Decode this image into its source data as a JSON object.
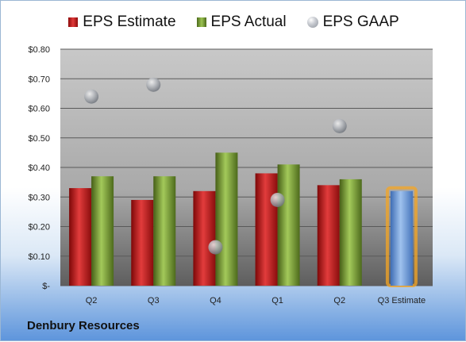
{
  "chart_data": {
    "type": "bar",
    "categories": [
      "Q2",
      "Q3",
      "Q4",
      "Q1",
      "Q2",
      "Q3 Estimate"
    ],
    "series": [
      {
        "name": "EPS Estimate",
        "color": "#c81d1d",
        "values": [
          0.33,
          0.29,
          0.32,
          0.38,
          0.34,
          null
        ]
      },
      {
        "name": "EPS Actual",
        "color": "#7ea536",
        "values": [
          0.37,
          0.37,
          0.45,
          0.41,
          0.36,
          null
        ]
      },
      {
        "name": "EPS GAAP",
        "color": "#a9adb4",
        "values": [
          0.64,
          0.68,
          0.13,
          0.29,
          0.54,
          null
        ]
      },
      {
        "name": "",
        "color": "#6f9edb",
        "highlight": "#f5a623",
        "values": [
          null,
          null,
          null,
          null,
          null,
          0.32
        ]
      }
    ],
    "y_ticks": [
      "$-",
      "$0.10",
      "$0.20",
      "$0.30",
      "$0.40",
      "$0.50",
      "$0.60",
      "$0.70",
      "$0.80"
    ],
    "ylim": [
      0,
      0.8
    ],
    "grid": true,
    "legend_position": "top-center",
    "title": "",
    "xlabel": "",
    "ylabel": ""
  },
  "legend": {
    "estimate": "EPS Estimate",
    "actual": "EPS Actual",
    "gaap": "EPS GAAP"
  },
  "company": "Denbury Resources"
}
